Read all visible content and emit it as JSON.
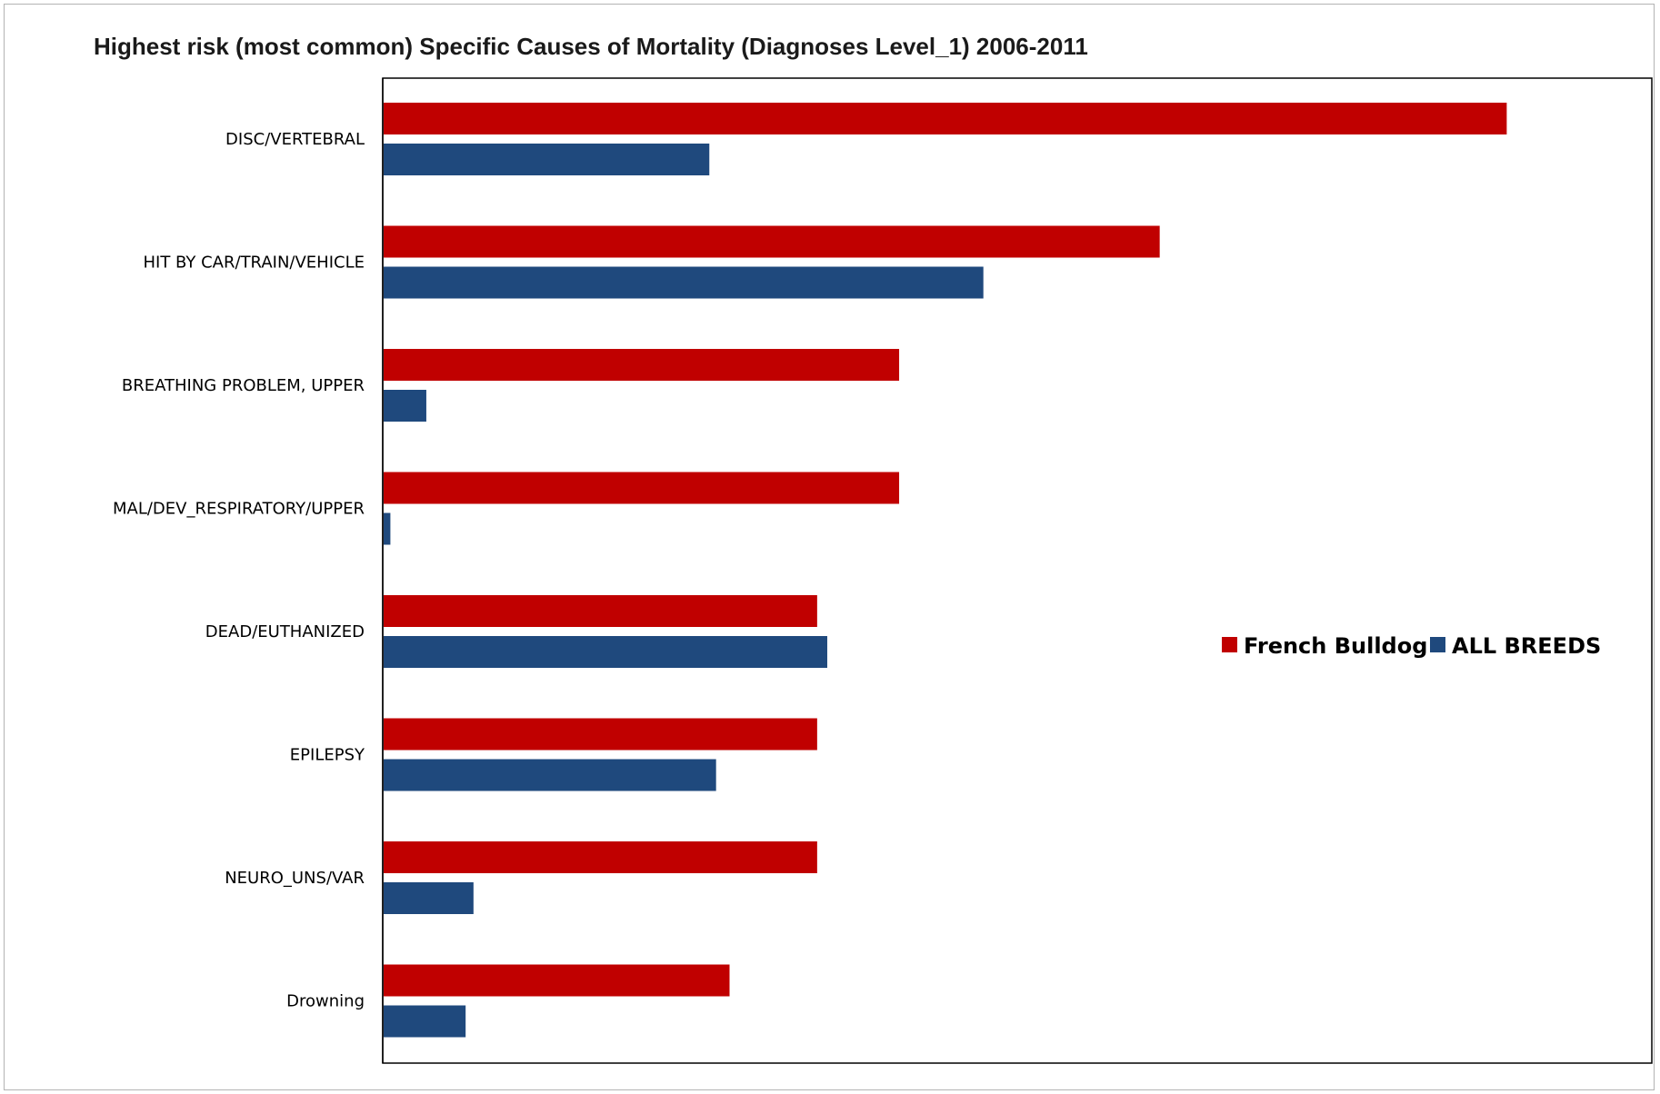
{
  "chart_data": {
    "type": "bar",
    "orientation": "horizontal",
    "title": "Highest risk (most common) Specific Causes of Mortality (Diagnoses Level_1) 2006-2011",
    "xlabel": "",
    "ylabel": "",
    "categories": [
      "DISC/VERTEBRAL",
      "HIT BY CAR/TRAIN/VEHICLE",
      "BREATHING PROBLEM, UPPER",
      "MAL/DEV_RESPIRATORY/UPPER",
      "DEAD/EUTHANIZED",
      "EPILEPSY",
      "NEURO_UNS/VAR",
      "Drowning"
    ],
    "series": [
      {
        "name": "French Bulldog",
        "color": "#C00000",
        "values": [
          100,
          69.1,
          45.9,
          45.9,
          38.6,
          38.6,
          38.6,
          30.8
        ]
      },
      {
        "name": "ALL BREEDS",
        "color": "#1F497D",
        "values": [
          29.0,
          53.4,
          3.8,
          0.6,
          39.5,
          29.6,
          8.0,
          7.3
        ]
      }
    ],
    "xlim": [
      0,
      113
    ],
    "grid": false,
    "axis_ticks_shown": false,
    "legend_position": "right"
  }
}
